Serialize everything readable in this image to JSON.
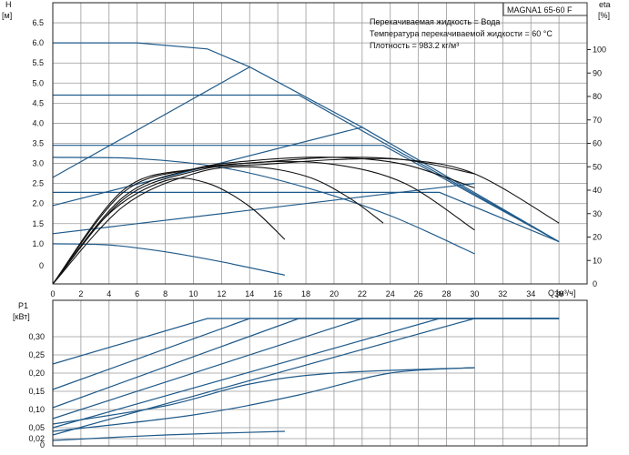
{
  "chart_data": [
    {
      "type": "line",
      "title": "MAGNA1 65-60 F",
      "ylabel": "H",
      "yunit": "[м]",
      "xlabel": "Q",
      "xunit": "[м³/ч]",
      "y2label": "eta",
      "y2unit": "[%]",
      "annotations": [
        "Перекачиваемая жидкость = Вода",
        "Температура перекачиваемой жидкости = 60 °C",
        "Плотность = 983.2 кг/м³"
      ],
      "xlim": [
        0,
        38
      ],
      "ylim": [
        0,
        7
      ],
      "y2lim": [
        0,
        120
      ],
      "xticks": [
        "0",
        "2",
        "4",
        "6",
        "8",
        "10",
        "12",
        "14",
        "16",
        "18",
        "20",
        "22",
        "24",
        "26",
        "28",
        "30",
        "32",
        "34",
        "36"
      ],
      "yticks": [
        "1.0",
        "1.5",
        "2.0",
        "2.5",
        "3.0",
        "3.5",
        "4.0",
        "4.5",
        "5.0",
        "5.5",
        "6.0",
        "6.5"
      ],
      "y2ticks": [
        "10",
        "20",
        "30",
        "40",
        "50",
        "60",
        "70",
        "80",
        "90",
        "100"
      ],
      "grid": true,
      "series": [
        {
          "kind": "head-max",
          "x": [
            0,
            6,
            11,
            14,
            22,
            36
          ],
          "y": [
            6.0,
            6.0,
            5.85,
            5.4,
            3.9,
            1.05
          ]
        },
        {
          "kind": "head-constant",
          "x": [
            0,
            17.5,
            36
          ],
          "y": [
            4.7,
            4.7,
            1.05
          ]
        },
        {
          "kind": "head-constant",
          "x": [
            0,
            23.5,
            36
          ],
          "y": [
            3.45,
            3.45,
            1.05
          ]
        },
        {
          "kind": "head-constant",
          "x": [
            0,
            27.5,
            36
          ],
          "y": [
            2.28,
            2.28,
            1.05
          ]
        },
        {
          "kind": "head-proportional",
          "x": [
            0,
            14
          ],
          "y": [
            2.65,
            5.4
          ]
        },
        {
          "kind": "head-proportional",
          "x": [
            0,
            22
          ],
          "y": [
            1.95,
            3.9
          ]
        },
        {
          "kind": "head-proportional",
          "x": [
            0,
            30
          ],
          "y": [
            1.25,
            2.5
          ]
        },
        {
          "kind": "head-min-speed",
          "x": [
            0,
            4,
            8,
            12,
            16.5
          ],
          "y": [
            1.0,
            0.97,
            0.8,
            0.55,
            0.22
          ]
        },
        {
          "kind": "head-proportional-speed",
          "x": [
            0,
            6,
            12,
            18,
            24,
            30
          ],
          "y": [
            3.15,
            3.12,
            2.9,
            2.4,
            1.7,
            0.75
          ]
        },
        {
          "kind": "efficiency",
          "x": [
            0,
            4,
            8,
            11,
            14,
            16.5
          ],
          "y": [
            0,
            30,
            44,
            43,
            33,
            19
          ]
        },
        {
          "kind": "efficiency",
          "x": [
            0,
            5,
            10,
            14,
            18,
            21,
            23.5
          ],
          "y": [
            0,
            33,
            47,
            50,
            46,
            37,
            26
          ]
        },
        {
          "kind": "efficiency",
          "x": [
            0,
            5,
            10,
            15,
            20,
            25,
            30
          ],
          "y": [
            0,
            36,
            48,
            52,
            51,
            43,
            23
          ]
        },
        {
          "kind": "efficiency",
          "x": [
            0,
            5,
            10,
            15,
            20,
            25,
            30
          ],
          "y": [
            0,
            37,
            49,
            53,
            54,
            51,
            41
          ]
        },
        {
          "kind": "efficiency",
          "x": [
            0,
            5,
            10,
            15,
            20,
            25,
            30
          ],
          "y": [
            0,
            39,
            49,
            52,
            54,
            53,
            47
          ]
        },
        {
          "kind": "efficiency",
          "x": [
            0,
            5,
            10,
            15,
            20,
            25,
            30,
            36
          ],
          "y": [
            0,
            40,
            49,
            51,
            53,
            53,
            47,
            26
          ]
        }
      ]
    },
    {
      "type": "line",
      "ylabel": "P1",
      "yunit": "[кВт]",
      "xlim": [
        0,
        38
      ],
      "ylim": [
        0,
        0.4
      ],
      "yticks": [
        "0,05",
        "0,10",
        "0,15",
        "0,20",
        "0,25",
        "0,30"
      ],
      "yticks_extra": [
        "0,02"
      ],
      "y_bottom_label": "0",
      "grid": true,
      "series": [
        {
          "kind": "power-max",
          "x": [
            0,
            11,
            36
          ],
          "y": [
            0.225,
            0.35,
            0.35
          ]
        },
        {
          "kind": "power-constant",
          "x": [
            0,
            14,
            36
          ],
          "y": [
            0.155,
            0.35,
            0.35
          ]
        },
        {
          "kind": "power-constant",
          "x": [
            0,
            17.5,
            36
          ],
          "y": [
            0.105,
            0.35,
            0.35
          ]
        },
        {
          "kind": "power-constant",
          "x": [
            0,
            22,
            36
          ],
          "y": [
            0.075,
            0.35,
            0.35
          ]
        },
        {
          "kind": "power-constant",
          "x": [
            0,
            27.5,
            36
          ],
          "y": [
            0.05,
            0.35,
            0.35
          ]
        },
        {
          "kind": "power-constant",
          "x": [
            0,
            30,
            36
          ],
          "y": [
            0.03,
            0.35,
            0.35
          ]
        },
        {
          "kind": "power-proportional",
          "x": [
            0,
            8,
            14,
            20,
            30
          ],
          "y": [
            0.06,
            0.11,
            0.17,
            0.2,
            0.215
          ]
        },
        {
          "kind": "power-proportional",
          "x": [
            0,
            10,
            17.5,
            24,
            30
          ],
          "y": [
            0.04,
            0.085,
            0.14,
            0.2,
            0.215
          ]
        },
        {
          "kind": "power-min-speed",
          "x": [
            0,
            8,
            16.5
          ],
          "y": [
            0.015,
            0.03,
            0.04
          ]
        }
      ]
    }
  ]
}
